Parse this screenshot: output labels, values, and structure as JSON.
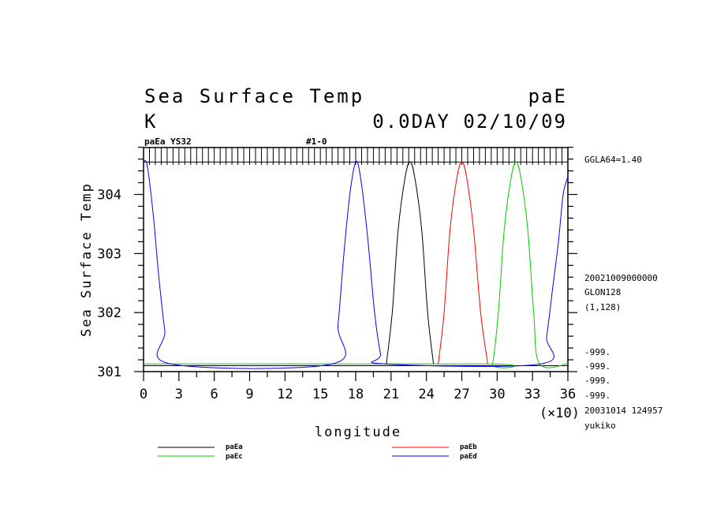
{
  "header": {
    "title_left": "Sea Surface Temp",
    "title_right": "paE",
    "unit": "K",
    "date_line": "0.0DAY 02/10/09"
  },
  "tags": {
    "left": "paEa YS32",
    "center": "#1-0"
  },
  "side_info": {
    "grid": "GGLA64=1.40",
    "date_code": "20021009000000",
    "lon": "GLON128",
    "index": "(1,128)",
    "missing": [
      "-999.",
      "-999.",
      "-999.",
      "-999."
    ],
    "timestamp": "20031014 124957",
    "user": "yukiko"
  },
  "chart_data": {
    "type": "line",
    "xlabel": "longitude",
    "ylabel": "Sea Surface Temp",
    "x_multiplier": "(×10)",
    "xlim": [
      0,
      36
    ],
    "ylim": [
      301,
      304.95
    ],
    "xticks": [
      0,
      3,
      6,
      9,
      12,
      15,
      18,
      21,
      24,
      27,
      30,
      33,
      36
    ],
    "yticks": [
      301,
      302,
      303,
      304
    ],
    "top_reference": 304.55,
    "bottom_reference": 301.1,
    "series": [
      {
        "name": "paEa",
        "color": "#000000",
        "points": [
          [
            20.6,
            301.13
          ],
          [
            21.1,
            302.0
          ],
          [
            21.6,
            303.4
          ],
          [
            22.2,
            304.3
          ],
          [
            22.6,
            304.55
          ],
          [
            23.0,
            304.3
          ],
          [
            23.6,
            303.4
          ],
          [
            24.1,
            302.0
          ],
          [
            24.6,
            301.13
          ]
        ]
      },
      {
        "name": "paEb",
        "color": "#ff0000",
        "points": [
          [
            25.0,
            301.13
          ],
          [
            25.5,
            302.0
          ],
          [
            26.0,
            303.4
          ],
          [
            26.6,
            304.3
          ],
          [
            27.0,
            304.55
          ],
          [
            27.4,
            304.3
          ],
          [
            28.0,
            303.4
          ],
          [
            28.6,
            302.0
          ],
          [
            29.2,
            301.13
          ]
        ]
      },
      {
        "name": "paEc",
        "color": "#00cc00",
        "points": [
          [
            0,
            301.13
          ],
          [
            29.2,
            301.13
          ],
          [
            29.6,
            301.13
          ],
          [
            30.1,
            302.0
          ],
          [
            30.6,
            303.4
          ],
          [
            31.2,
            304.3
          ],
          [
            31.6,
            304.55
          ],
          [
            32.0,
            304.3
          ],
          [
            32.6,
            303.4
          ],
          [
            33.1,
            302.0
          ],
          [
            33.6,
            301.13
          ],
          [
            36,
            301.13
          ]
        ]
      },
      {
        "name": "paEd",
        "color": "#0000ff",
        "points": [
          [
            0,
            304.55
          ],
          [
            0.3,
            304.5
          ],
          [
            0.8,
            303.7
          ],
          [
            1.3,
            302.6
          ],
          [
            1.8,
            301.7
          ],
          [
            2.3,
            301.13
          ],
          [
            16.0,
            301.13
          ],
          [
            16.5,
            301.8
          ],
          [
            17.0,
            303.0
          ],
          [
            17.5,
            304.0
          ],
          [
            18.0,
            304.55
          ],
          [
            18.4,
            304.3
          ],
          [
            19.0,
            303.3
          ],
          [
            19.6,
            302.0
          ],
          [
            20.1,
            301.3
          ],
          [
            20.4,
            301.13
          ],
          [
            33.7,
            301.13
          ],
          [
            34.2,
            301.6
          ],
          [
            34.7,
            302.4
          ],
          [
            35.2,
            303.2
          ],
          [
            35.6,
            304.0
          ],
          [
            36,
            304.3
          ]
        ]
      }
    ]
  }
}
